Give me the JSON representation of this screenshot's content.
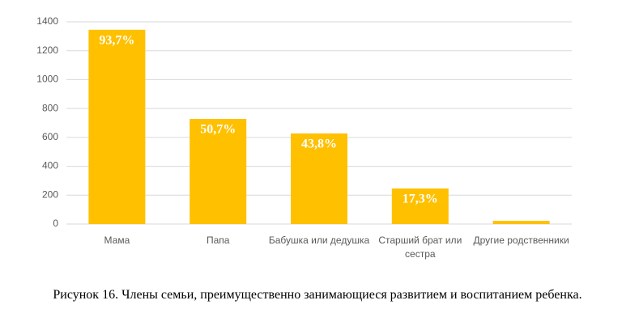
{
  "chart_data": {
    "type": "bar",
    "categories": [
      "Мама",
      "Папа",
      "Бабушка или дедушка",
      "Старший брат или сестра",
      "Другие родственники"
    ],
    "values": [
      1345,
      728,
      627,
      246,
      22
    ],
    "bar_labels": [
      "93,7%",
      "50,7%",
      "43,8%",
      "17,3%",
      null
    ],
    "color": "#ffc000",
    "ylim": [
      0,
      1400
    ],
    "yticks": [
      0,
      200,
      400,
      600,
      800,
      1000,
      1200,
      1400
    ],
    "grid": true,
    "caption": "Рисунок 16. Члены семьи, преимущественно занимающиеся развитием и воспитанием ребенка."
  }
}
